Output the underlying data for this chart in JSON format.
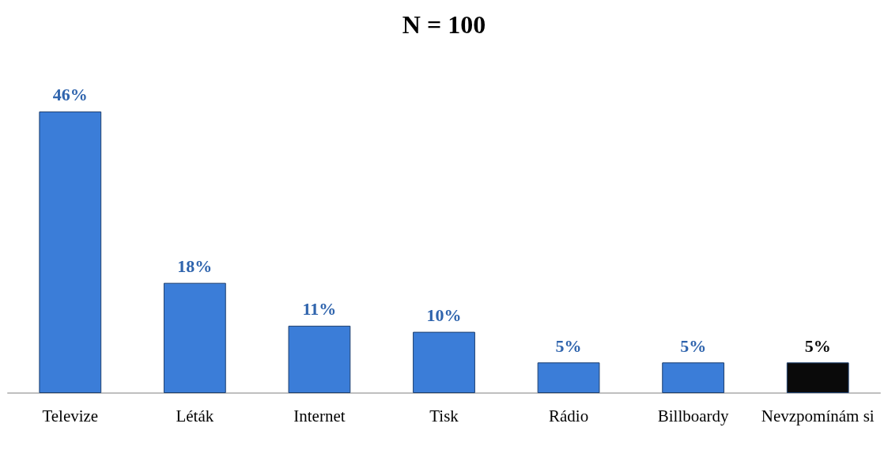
{
  "chart_data": {
    "type": "bar",
    "title": "N = 100",
    "categories": [
      "Televize",
      "Léták",
      "Internet",
      "Tisk",
      "Rádio",
      "Billboardy",
      "Nevzpomínám si"
    ],
    "values": [
      46,
      18,
      11,
      10,
      5,
      5,
      5
    ],
    "colors": [
      "#3b7dd8",
      "#3b7dd8",
      "#3b7dd8",
      "#3b7dd8",
      "#3b7dd8",
      "#3b7dd8",
      "#0a0a0a"
    ],
    "value_labels": [
      "46%",
      "18%",
      "11%",
      "10%",
      "5%",
      "5%",
      "5%"
    ]
  }
}
